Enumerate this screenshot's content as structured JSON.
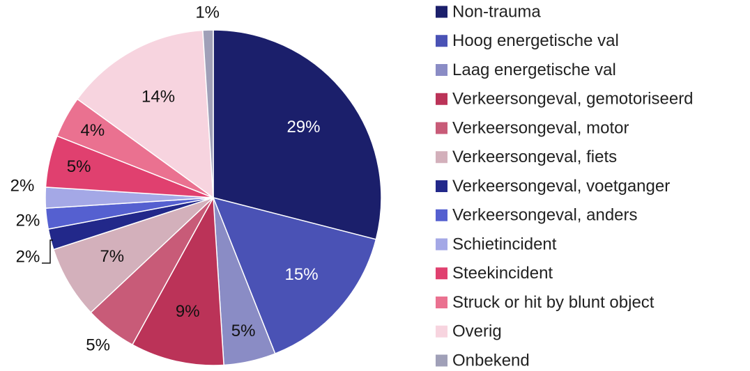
{
  "chart_data": {
    "type": "pie",
    "categories": [
      "Non-trauma",
      "Hoog energetische val",
      "Laag energetische val",
      "Verkeersongeval, gemotoriseerd",
      "Verkeersongeval, motor",
      "Verkeersongeval, fiets",
      "Verkeersongeval, voetganger",
      "Verkeersongeval, anders",
      "Schietincident",
      "Steekincident",
      "Struck or hit by blunt object",
      "Overig",
      "Onbekend"
    ],
    "values": [
      29,
      15,
      5,
      9,
      5,
      7,
      2,
      2,
      2,
      5,
      4,
      14,
      1
    ],
    "value_labels": [
      "29%",
      "15%",
      "5%",
      "9%",
      "5%",
      "7%",
      "2%",
      "2%",
      "2%",
      "5%",
      "4%",
      "14%",
      "1%"
    ],
    "colors": [
      "#1b1f6b",
      "#4a52b5",
      "#8a8cc5",
      "#bb3358",
      "#c85b78",
      "#d3b0bb",
      "#22288a",
      "#5560d0",
      "#a4a8e6",
      "#e0406f",
      "#ea7190",
      "#f7d4df",
      "#a0a0b8"
    ],
    "legend": "right"
  }
}
